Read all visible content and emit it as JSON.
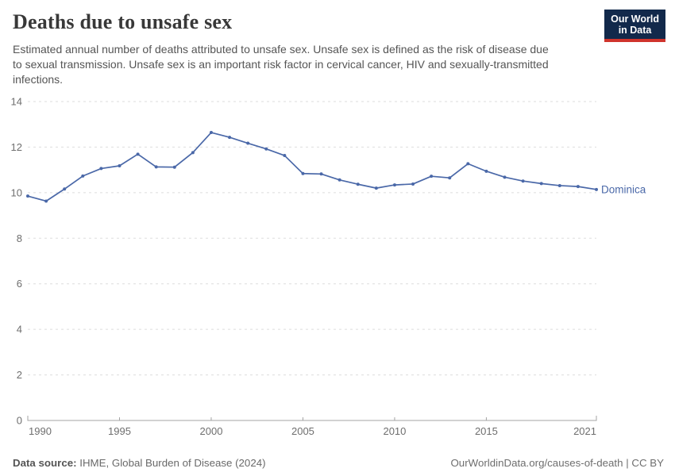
{
  "header": {
    "title": "Deaths due to unsafe sex",
    "subtitle_lines": [
      "Estimated annual number of deaths attributed to unsafe sex. Unsafe sex is defined as the risk of disease due",
      "to sexual transmission. Unsafe sex is an important risk factor in cervical cancer, HIV and sexually-transmitted",
      "infections."
    ],
    "logo": {
      "line1": "Our World",
      "line2": "in Data"
    }
  },
  "chart_data": {
    "type": "line",
    "title": "Deaths due to unsafe sex",
    "xlabel": "",
    "ylabel": "",
    "x": [
      1990,
      1991,
      1992,
      1993,
      1994,
      1995,
      1996,
      1997,
      1998,
      1999,
      2000,
      2001,
      2002,
      2003,
      2004,
      2005,
      2006,
      2007,
      2008,
      2009,
      2010,
      2011,
      2012,
      2013,
      2014,
      2015,
      2016,
      2017,
      2018,
      2019,
      2020,
      2021
    ],
    "series": [
      {
        "name": "Dominica",
        "values": [
          9.85,
          9.63,
          10.16,
          10.73,
          11.06,
          11.18,
          11.69,
          11.13,
          11.12,
          11.76,
          12.64,
          12.43,
          12.17,
          11.92,
          11.63,
          10.84,
          10.82,
          10.56,
          10.37,
          10.2,
          10.34,
          10.38,
          10.72,
          10.65,
          11.27,
          10.94,
          10.68,
          10.51,
          10.4,
          10.31,
          10.27,
          10.14
        ]
      }
    ],
    "ylim": [
      0,
      14
    ],
    "yticks": [
      0,
      2,
      4,
      6,
      8,
      10,
      12,
      14
    ],
    "xticks": [
      1990,
      1995,
      2000,
      2005,
      2010,
      2015,
      2021
    ],
    "grid": "horizontal-dashed",
    "legend_position": "end-of-line-label"
  },
  "colors": {
    "line": "#4A68A8",
    "entity_label": "#4A68A8",
    "grid": "#dddddd",
    "axis": "#a3a3a3",
    "tick_label": "#6e6e6e",
    "logo_background": "#12294B",
    "logo_accent": "#D0342C"
  },
  "footer": {
    "source_label": "Data source:",
    "source_text": " IHME, Global Burden of Disease (2024)",
    "attribution": "OurWorldinData.org/causes-of-death | CC BY"
  }
}
